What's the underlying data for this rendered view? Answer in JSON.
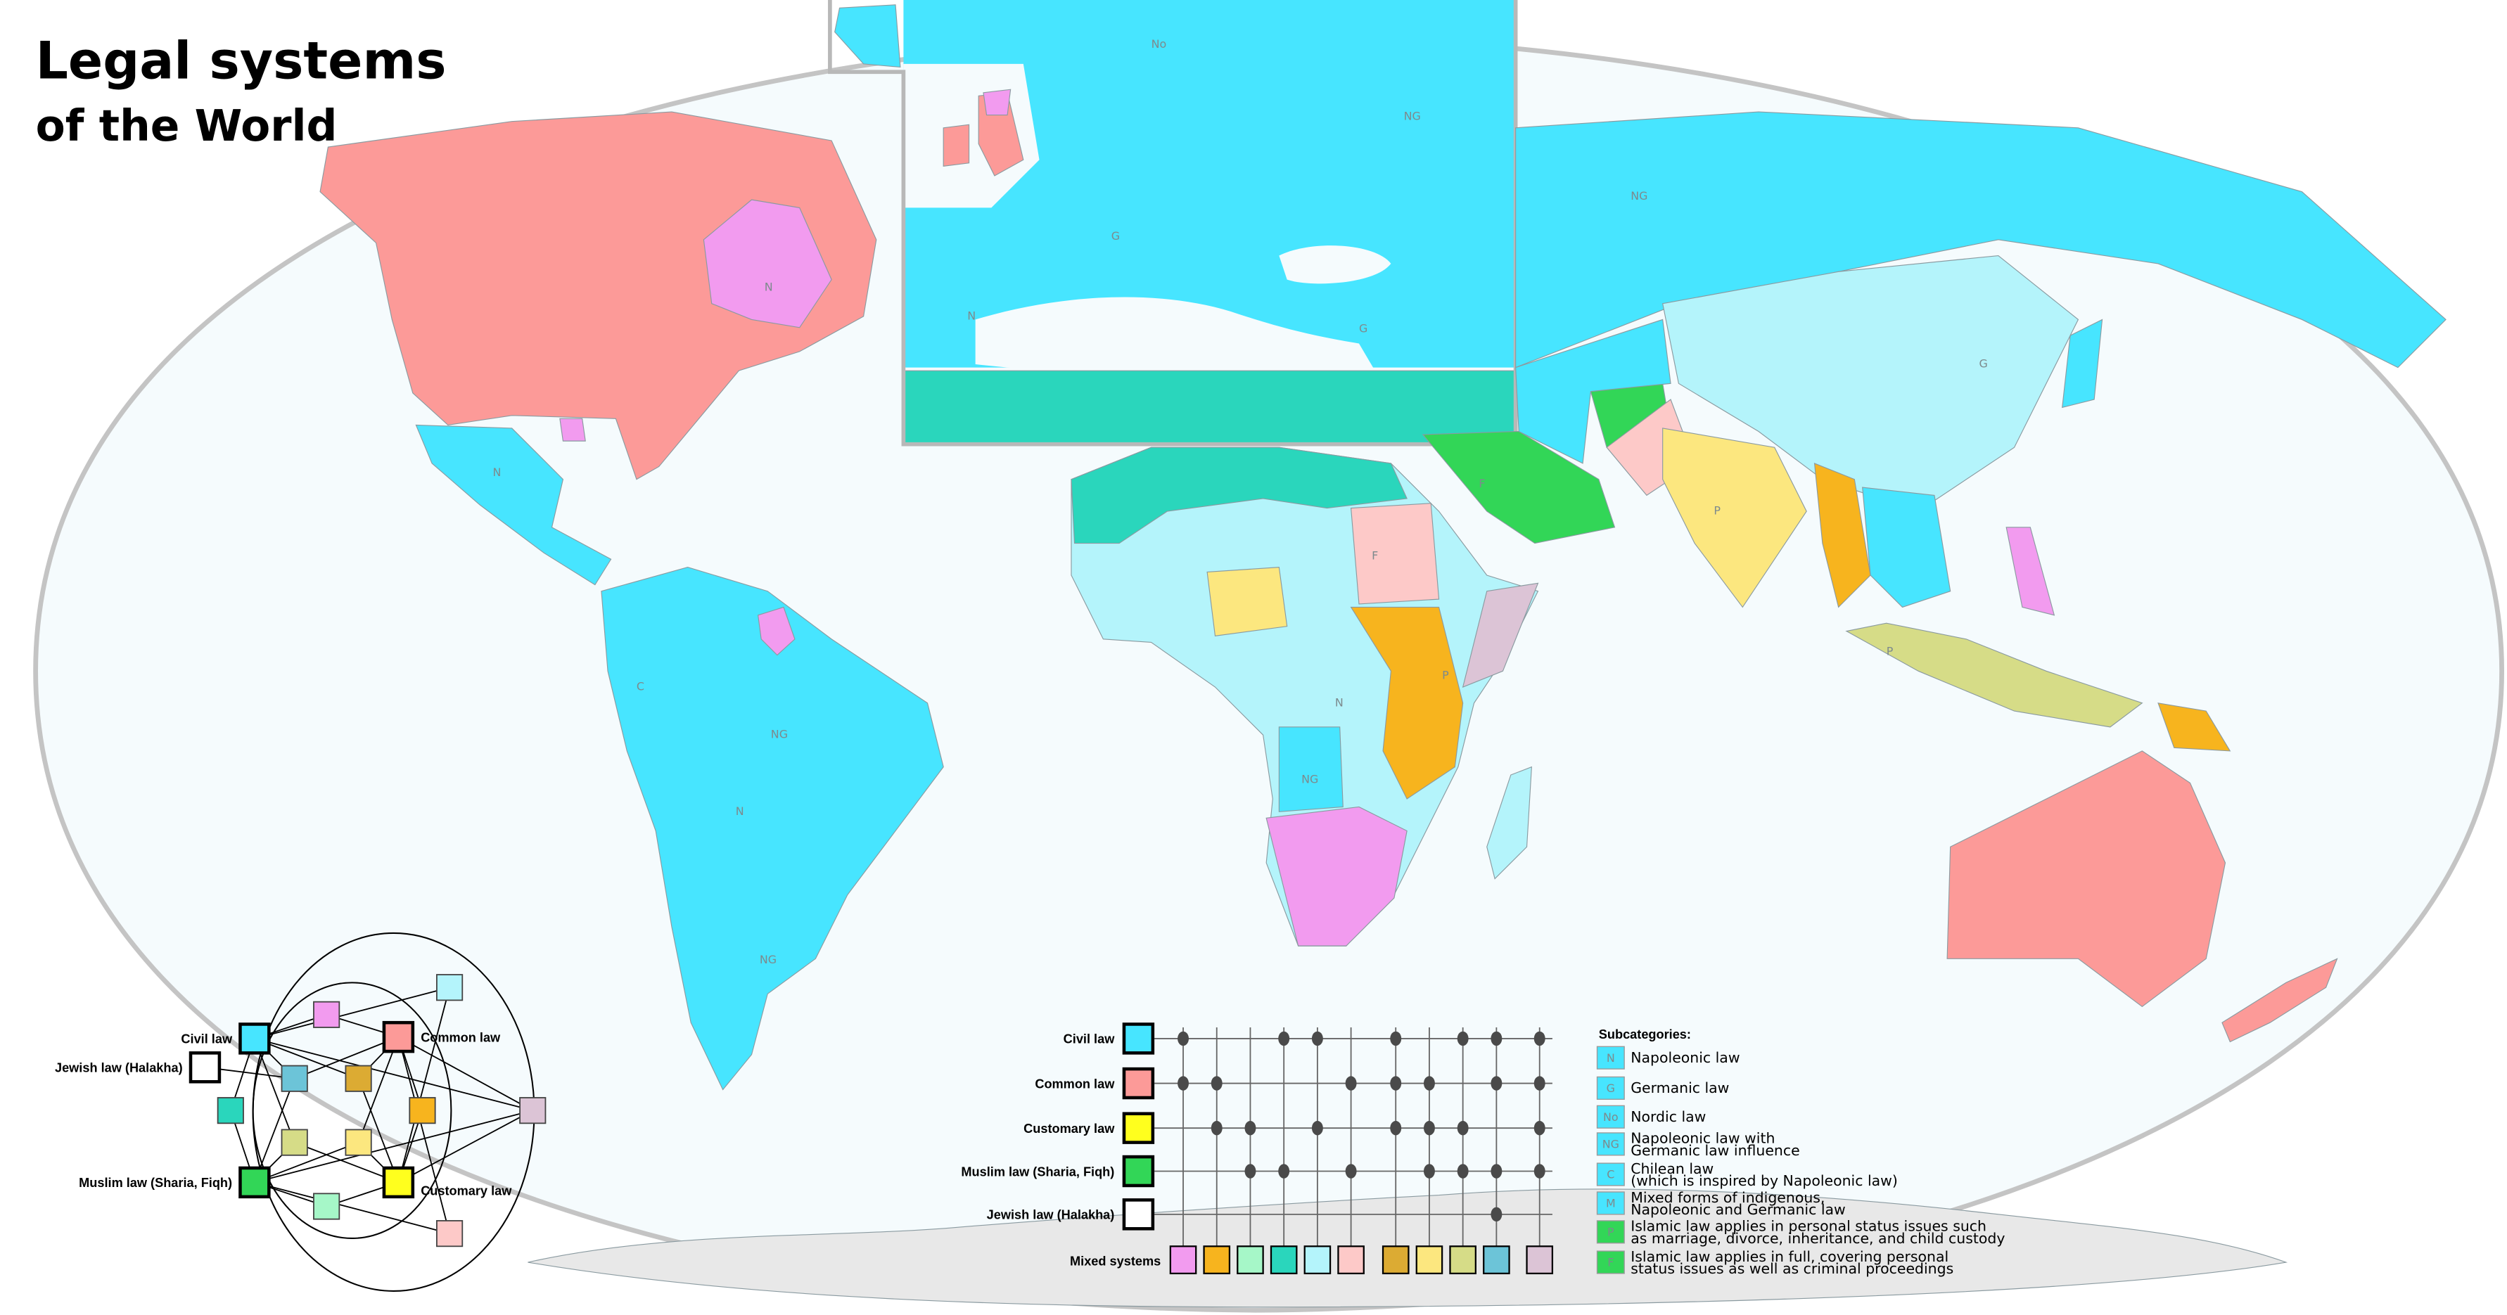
{
  "title": {
    "line1": "Legal systems",
    "line2": "of the World"
  },
  "colors": {
    "civil": "#47e5ff",
    "common": "#fc9a98",
    "customary": "#ffff1e",
    "muslim": "#32d657",
    "jewish": "#ffffff",
    "ocean": "#f5fbfd",
    "antarctica": "#e8e8e8",
    "border": "#c4c4c4"
  },
  "diagram": {
    "civil": "Civil law",
    "common": "Common law",
    "customary": "Customary law",
    "muslim": "Muslim law (Sharia, Fiqh)",
    "jewish": "Jewish law (Halakha)"
  },
  "matrix": {
    "rows": [
      {
        "key": "civil",
        "label": "Civil law"
      },
      {
        "key": "common",
        "label": "Common law"
      },
      {
        "key": "customary",
        "label": "Customary law"
      },
      {
        "key": "muslim",
        "label": "Muslim law (Sharia, Fiqh)"
      },
      {
        "key": "jewish",
        "label": "Jewish law (Halakha)"
      }
    ],
    "mixed_label": "Mixed systems",
    "mixed": [
      {
        "color": "#f29bef",
        "members": [
          "civil",
          "common"
        ]
      },
      {
        "color": "#f7b41e",
        "members": [
          "common",
          "customary"
        ]
      },
      {
        "color": "#a6f7c8",
        "members": [
          "customary",
          "muslim"
        ]
      },
      {
        "color": "#2ad6bc",
        "members": [
          "civil",
          "muslim"
        ]
      },
      {
        "color": "#b4f4fb",
        "members": [
          "civil",
          "customary"
        ]
      },
      {
        "color": "#fdc9c8",
        "members": [
          "common",
          "muslim"
        ]
      },
      {
        "color": "#dcab33",
        "members": [
          "civil",
          "common",
          "customary"
        ]
      },
      {
        "color": "#fce77f",
        "members": [
          "common",
          "customary",
          "muslim"
        ]
      },
      {
        "color": "#d6dc87",
        "members": [
          "civil",
          "customary",
          "muslim"
        ]
      },
      {
        "color": "#6cc4d8",
        "members": [
          "civil",
          "common",
          "muslim",
          "jewish"
        ]
      },
      {
        "color": "#dcc4d6",
        "members": [
          "civil",
          "common",
          "customary",
          "muslim"
        ]
      }
    ]
  },
  "subcategories": {
    "title": "Subcategories:",
    "items": [
      {
        "code": "N",
        "color": "#47e5ff",
        "lines": [
          "Napoleonic law"
        ]
      },
      {
        "code": "G",
        "color": "#47e5ff",
        "lines": [
          "Germanic law"
        ]
      },
      {
        "code": "No",
        "color": "#47e5ff",
        "lines": [
          "Nordic law"
        ]
      },
      {
        "code": "NG",
        "color": "#47e5ff",
        "lines": [
          "Napoleonic law with",
          "Germanic law influence"
        ]
      },
      {
        "code": "C",
        "color": "#47e5ff",
        "lines": [
          "Chilean law",
          "(which is inspired by Napoleonic law)"
        ]
      },
      {
        "code": "M",
        "color": "#47e5ff",
        "lines": [
          "Mixed forms of indigenous,",
          "Napoleonic and Germanic law"
        ]
      },
      {
        "code": "P",
        "color": "#32d657",
        "lines": [
          "Islamic law applies in personal status issues such",
          "as marriage, divorce, inheritance, and child custody"
        ]
      },
      {
        "code": "F",
        "color": "#32d657",
        "lines": [
          "Islamic law applies in full, covering personal",
          "status issues as well as criminal proceedings"
        ]
      }
    ]
  },
  "map_labels": [
    "N",
    "N",
    "NG",
    "N",
    "C",
    "NG",
    "G",
    "NG",
    "No",
    "G",
    "F",
    "P",
    "P",
    "N",
    "NG",
    "F",
    "P",
    "NG",
    "G",
    "N"
  ]
}
